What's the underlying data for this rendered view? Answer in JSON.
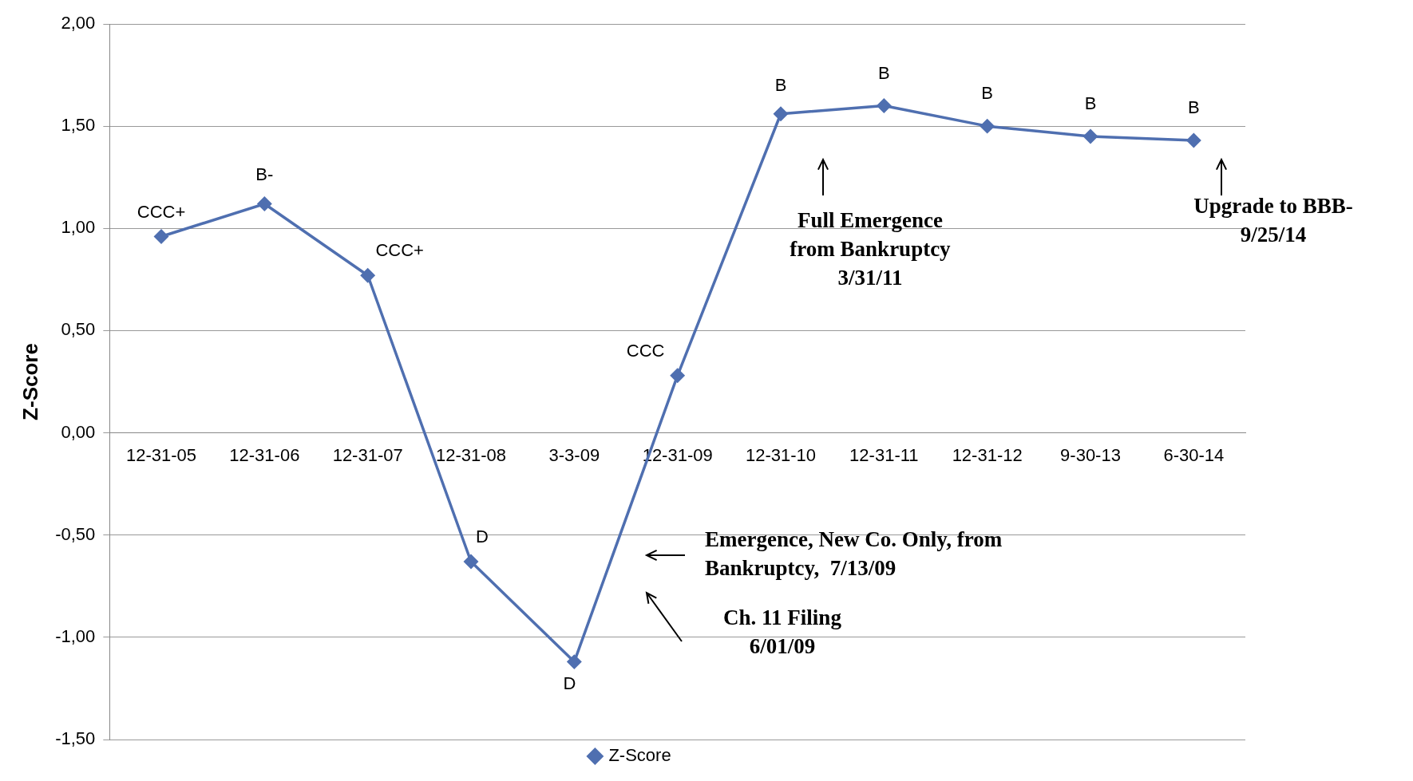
{
  "chart_data": {
    "type": "line",
    "ylabel": "Z-Score",
    "categories": [
      "12-31-05",
      "12-31-06",
      "12-31-07",
      "12-31-08",
      "3-3-09",
      "12-31-09",
      "12-31-10",
      "12-31-11",
      "12-31-12",
      "9-30-13",
      "6-30-14"
    ],
    "series": [
      {
        "name": "Z-Score",
        "color": "#4f6fb0",
        "values": [
          0.96,
          1.12,
          0.77,
          -0.63,
          -1.12,
          0.28,
          1.56,
          1.6,
          1.5,
          1.45,
          1.43
        ]
      }
    ],
    "ylim": [
      -1.5,
      2
    ],
    "yticks": [
      {
        "value": -1.5,
        "label": "-1,50"
      },
      {
        "value": -1,
        "label": "-1,00"
      },
      {
        "value": -0.5,
        "label": "-0,50"
      },
      {
        "value": 0,
        "label": "0,00"
      },
      {
        "value": 0.5,
        "label": "0,50"
      },
      {
        "value": 1,
        "label": "1,00"
      },
      {
        "value": 1.5,
        "label": "1,50"
      },
      {
        "value": 2,
        "label": "2,00"
      }
    ],
    "grid": "y",
    "legend": "bottom",
    "marker": "diamond",
    "line_style": "solid",
    "annotations": [
      {
        "text": "CCC+",
        "x": "12-31-05",
        "y": 0.96
      },
      {
        "text": "B-",
        "x": "12-31-06",
        "y": 1.12
      },
      {
        "text": "CCC+",
        "x": "12-31-07",
        "y": 0.77
      },
      {
        "text": "D",
        "x": "12-31-08",
        "y": -0.63
      },
      {
        "text": "D",
        "x": "3-3-09",
        "y": -1.12
      },
      {
        "text": "CCC",
        "x": "12-31-09",
        "y": 0.28
      },
      {
        "text": "B",
        "x": "12-31-10",
        "y": 1.56
      },
      {
        "text": "B",
        "x": "12-31-11",
        "y": 1.6
      },
      {
        "text": "B",
        "x": "12-31-12",
        "y": 1.5
      },
      {
        "text": "B",
        "x": "9-30-13",
        "y": 1.45
      },
      {
        "text": "B",
        "x": "6-30-14",
        "y": 1.43
      },
      "Full Emergence\nfrom Bankruptcy\n3/31/11",
      "Upgrade to BBB-\n9/25/14",
      "Emergence, New Co. Only, from\nBankruptcy,  7/13/09",
      "Ch. 11 Filing\n6/01/09"
    ]
  }
}
